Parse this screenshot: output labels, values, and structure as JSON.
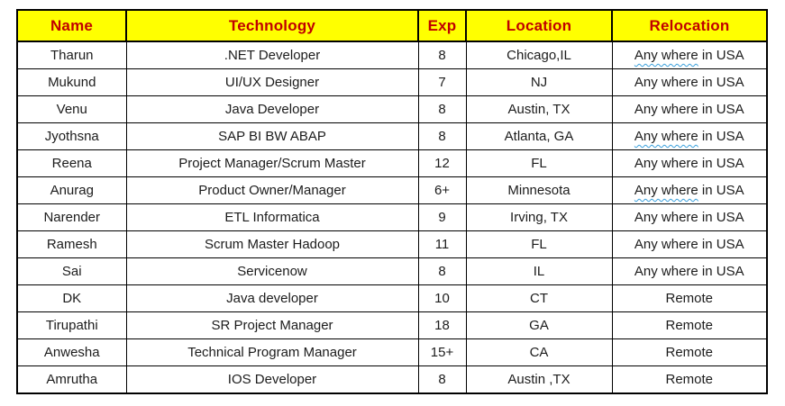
{
  "styles": {
    "header_background": "#ffff00",
    "header_text_color": "#c00000",
    "border_color": "#000000",
    "spellcheck_underline_color": "#3aa0dc"
  },
  "header": {
    "name": "Name",
    "technology": "Technology",
    "exp": "Exp",
    "location": "Location",
    "relocation": "Relocation"
  },
  "rows": [
    {
      "name": "Tharun",
      "technology": ".NET Developer",
      "exp": "8",
      "location": "Chicago,IL",
      "relocation_marked": "Any where",
      "relocation_tail": " in USA"
    },
    {
      "name": "Mukund",
      "technology": "UI/UX Designer",
      "exp": "7",
      "location": "NJ",
      "relocation": "Any where in USA"
    },
    {
      "name": "Venu",
      "technology": "Java Developer",
      "exp": "8",
      "location": "Austin, TX",
      "relocation": "Any where in USA"
    },
    {
      "name": "Jyothsna",
      "technology": "SAP BI BW ABAP",
      "exp": "8",
      "location": "Atlanta, GA",
      "relocation_marked": "Any where",
      "relocation_tail": " in USA"
    },
    {
      "name": "Reena",
      "technology": "Project Manager/Scrum Master",
      "exp": "12",
      "location": "FL",
      "relocation": "Any where in USA"
    },
    {
      "name": "Anurag",
      "technology": "Product Owner/Manager",
      "exp": "6+",
      "location": "Minnesota",
      "relocation_marked": "Any where",
      "relocation_tail": " in USA"
    },
    {
      "name": "Narender",
      "technology": "ETL Informatica",
      "exp": "9",
      "location": "Irving, TX",
      "relocation": "Any where in USA"
    },
    {
      "name": "Ramesh",
      "technology": "Scrum Master Hadoop",
      "exp": "11",
      "location": "FL",
      "relocation": "Any where in USA"
    },
    {
      "name": "Sai",
      "technology": "Servicenow",
      "exp": "8",
      "location": "IL",
      "relocation": "Any where in USA"
    },
    {
      "name": "DK",
      "technology": "Java developer",
      "exp": "10",
      "location": "CT",
      "relocation": "Remote"
    },
    {
      "name": "Tirupathi",
      "technology": "SR Project Manager",
      "exp": "18",
      "location": "GA",
      "relocation": "Remote"
    },
    {
      "name": "Anwesha",
      "technology": "Technical Program Manager",
      "exp": "15+",
      "location": "CA",
      "relocation": "Remote"
    },
    {
      "name": "Amrutha",
      "technology": "IOS Developer",
      "exp": "8",
      "location": "Austin ,TX",
      "relocation": "Remote"
    }
  ]
}
